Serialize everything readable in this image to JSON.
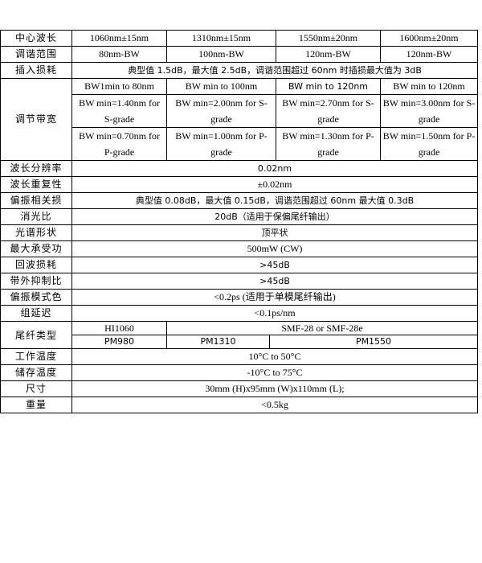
{
  "columns": [
    "1060nm±15nm",
    "1310nm±15nm",
    "1550nm±20nm",
    "1600nm±20nm"
  ],
  "rows": {
    "center_wavelength": {
      "label": "中心波长"
    },
    "tuning_range": {
      "label": "调谐范围",
      "values": [
        "80nm-BW",
        "100nm-BW",
        "120nm-BW",
        "120nm-BW"
      ]
    },
    "insertion_loss": {
      "label": "插入损耗",
      "value": "典型值 1.5dB，最大值 2.5dB，调谐范围超过 60nm 时插损最大值为 3dB"
    },
    "tunable_bandwidth": {
      "label": "调节带宽",
      "range": [
        "BW1min to 80nm",
        "BW min to 100nm",
        "BW min to 120nm",
        "BW min to 120nm"
      ],
      "s_grade": [
        "BW min=1.40nm for S-grade",
        "BW min=2.00nm for S-grade",
        "BW min=2.70nm for S-grade",
        "BW min=3.00nm for S-grade"
      ],
      "p_grade": [
        "BW min=0.70nm for P-grade",
        "BW min=1.00nm for P-grade",
        "BW min=1.30nm for P-grade",
        "BW min=1.50nm for P-grade"
      ]
    },
    "wavelength_resolution": {
      "label": "波长分辨率",
      "value": "0.02nm"
    },
    "wavelength_repeatability": {
      "label": "波长重复性",
      "value": "±0.02nm"
    },
    "pdl": {
      "label": "偏振相关损",
      "value": "典型值 0.08dB，最大值 0.15dB，调谐范围超过 60nm 最大值 0.3dB"
    },
    "extinction_ratio": {
      "label": "消光比",
      "value": "20dB（适用于保偏尾纤输出）"
    },
    "spectral_shape": {
      "label": "光谱形状",
      "value": "顶平状"
    },
    "max_power": {
      "label": "最大承受功",
      "value": "500mW (CW)"
    },
    "return_loss": {
      "label": "回波损耗",
      "value": ">45dB"
    },
    "out_of_band_rejection": {
      "label": "带外抑制比",
      "value": ">45dB"
    },
    "pmd": {
      "label": "偏振模式色",
      "value": "<0.2ps (适用于单模尾纤输出)"
    },
    "group_delay": {
      "label": "组延迟",
      "value": "<0.1ps/nm"
    },
    "fiber_type": {
      "label": "尾纤类型",
      "sm": [
        "HI1060",
        "SMF-28 or SMF-28e"
      ],
      "pm": [
        "PM980",
        "PM1310",
        "PM1550"
      ]
    },
    "operating_temp": {
      "label": "工作温度",
      "value": "10°C to 50°C"
    },
    "storage_temp": {
      "label": "储存温度",
      "value": "-10°C to 75°C"
    },
    "dimensions": {
      "label": "尺寸",
      "value": "30mm (H)x95mm (W)x110mm (L);"
    },
    "weight": {
      "label": "重量",
      "value": "<0.5kg"
    }
  }
}
